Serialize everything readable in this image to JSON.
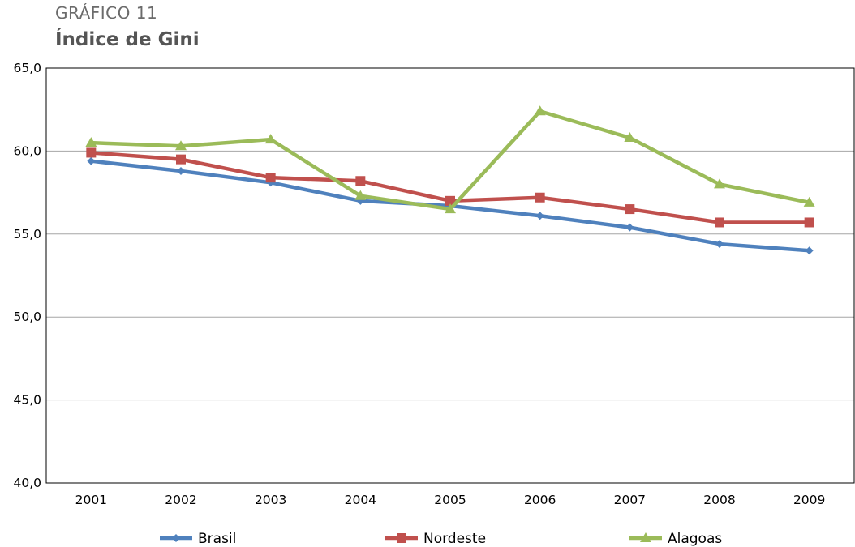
{
  "header": {
    "kicker": "GRÁFICO 11",
    "title": "Índice de Gini"
  },
  "chart_data": {
    "type": "line",
    "title": "Índice de Gini",
    "xlabel": "",
    "ylabel": "",
    "categories": [
      "2001",
      "2002",
      "2003",
      "2004",
      "2005",
      "2006",
      "2007",
      "2008",
      "2009"
    ],
    "ylim": [
      40,
      65
    ],
    "yticks": [
      "40,0",
      "45,0",
      "50,0",
      "55,0",
      "60,0",
      "65,0"
    ],
    "grid": true,
    "legend_position": "bottom",
    "series": [
      {
        "name": "Brasil",
        "color": "#4f81bd",
        "marker": "diamond",
        "values": [
          59.4,
          58.8,
          58.1,
          57.0,
          56.7,
          56.1,
          55.4,
          54.4,
          54.0
        ]
      },
      {
        "name": "Nordeste",
        "color": "#c0504d",
        "marker": "square",
        "values": [
          59.9,
          59.5,
          58.4,
          58.2,
          57.0,
          57.2,
          56.5,
          55.7,
          55.7
        ]
      },
      {
        "name": "Alagoas",
        "color": "#9bbb59",
        "marker": "triangle",
        "values": [
          60.5,
          60.3,
          60.7,
          57.3,
          56.5,
          62.4,
          60.8,
          58.0,
          56.9
        ]
      }
    ]
  }
}
